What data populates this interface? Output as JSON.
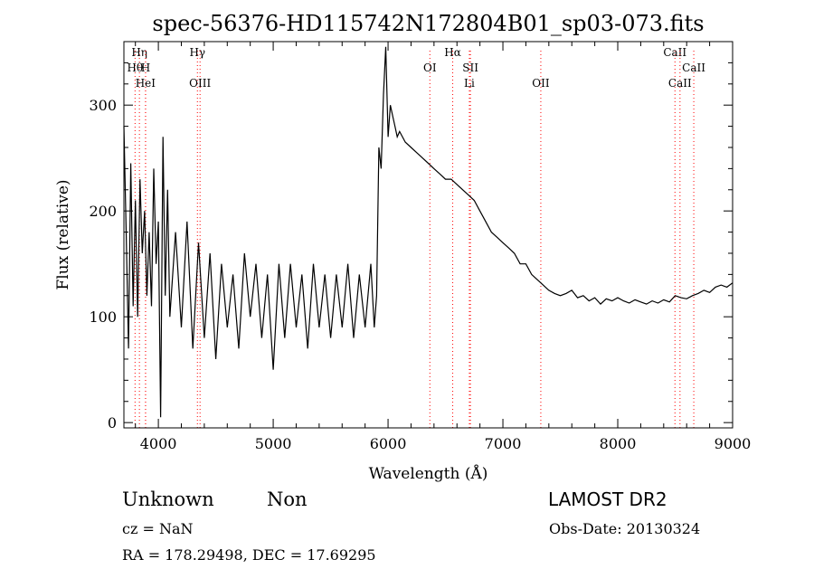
{
  "chart_data": {
    "type": "line",
    "title": "spec-56376-HD115742N172804B01_sp03-073.fits",
    "xlabel": "Wavelength (Å)",
    "ylabel": "Flux (relative)",
    "xlim": [
      3700,
      9000
    ],
    "ylim": [
      -5,
      360
    ],
    "xticks": [
      4000,
      5000,
      6000,
      7000,
      8000,
      9000
    ],
    "yticks": [
      0,
      100,
      200,
      300
    ],
    "line_color": "#000000",
    "marker_color": "#ff0000",
    "series": [
      {
        "x": [
          3700,
          3720,
          3740,
          3760,
          3780,
          3800,
          3820,
          3840,
          3860,
          3880,
          3900,
          3920,
          3940,
          3960,
          3980,
          4000,
          4020,
          4040,
          4060,
          4080,
          4100,
          4150,
          4200,
          4250,
          4300,
          4350,
          4400,
          4450,
          4500,
          4550,
          4600,
          4650,
          4700,
          4750,
          4800,
          4850,
          4900,
          4950,
          5000,
          5050,
          5100,
          5150,
          5200,
          5250,
          5300,
          5350,
          5400,
          5450,
          5500,
          5550,
          5600,
          5650,
          5700,
          5750,
          5800,
          5850,
          5880,
          5900,
          5920,
          5940,
          5960,
          5980,
          6000,
          6020,
          6040,
          6060,
          6080,
          6100,
          6150,
          6200,
          6250,
          6300,
          6350,
          6400,
          6450,
          6500,
          6550,
          6600,
          6650,
          6700,
          6750,
          6800,
          6850,
          6900,
          6950,
          7000,
          7050,
          7100,
          7150,
          7200,
          7250,
          7300,
          7350,
          7400,
          7450,
          7500,
          7550,
          7600,
          7650,
          7700,
          7750,
          7800,
          7850,
          7900,
          7950,
          8000,
          8050,
          8100,
          8150,
          8200,
          8250,
          8300,
          8350,
          8400,
          8450,
          8500,
          8550,
          8600,
          8650,
          8700,
          8750,
          8800,
          8850,
          8900,
          8950,
          9000
        ],
        "y": [
          280,
          180,
          70,
          245,
          110,
          210,
          100,
          230,
          160,
          200,
          120,
          180,
          110,
          240,
          150,
          190,
          5,
          270,
          120,
          220,
          100,
          180,
          90,
          190,
          70,
          170,
          80,
          160,
          60,
          150,
          90,
          140,
          70,
          160,
          100,
          150,
          80,
          140,
          50,
          150,
          80,
          150,
          90,
          140,
          70,
          150,
          90,
          140,
          80,
          140,
          90,
          150,
          80,
          140,
          90,
          150,
          90,
          120,
          260,
          240,
          310,
          355,
          270,
          300,
          290,
          280,
          270,
          275,
          265,
          260,
          255,
          250,
          245,
          240,
          235,
          230,
          230,
          225,
          220,
          215,
          210,
          200,
          190,
          180,
          175,
          170,
          165,
          160,
          150,
          150,
          140,
          135,
          130,
          125,
          122,
          120,
          122,
          125,
          118,
          120,
          115,
          118,
          112,
          117,
          115,
          118,
          115,
          113,
          116,
          114,
          112,
          115,
          113,
          116,
          114,
          120,
          118,
          117,
          120,
          122,
          125,
          123,
          128,
          130,
          128,
          132
        ]
      }
    ],
    "markers": {
      "top_row": [
        {
          "label": "Hη",
          "x": 3835
        },
        {
          "label": "Hγ",
          "x": 4340
        },
        {
          "label": "Hα",
          "x": 6563
        },
        {
          "label": "CaII",
          "x": 8498
        }
      ],
      "middle_row": [
        {
          "label": "Hθ",
          "x": 3797
        },
        {
          "label": "H",
          "x": 3889
        },
        {
          "label": "OI",
          "x": 6364
        },
        {
          "label": "SII",
          "x": 6717
        },
        {
          "label": "CaII",
          "x": 8662
        }
      ],
      "bottom_row": [
        {
          "label": "HeI",
          "x": 3888
        },
        {
          "label": "OIII",
          "x": 4363
        },
        {
          "label": "Li",
          "x": 6708
        },
        {
          "label": "OII",
          "x": 7330
        },
        {
          "label": "CaII",
          "x": 8542
        }
      ]
    }
  },
  "info": {
    "class": "Unknown",
    "subclass": "Non",
    "survey": "LAMOST DR2",
    "cz": "cz = NaN",
    "obs_date": "Obs-Date: 20130324",
    "coords": "RA = 178.29498, DEC =  17.69295"
  }
}
